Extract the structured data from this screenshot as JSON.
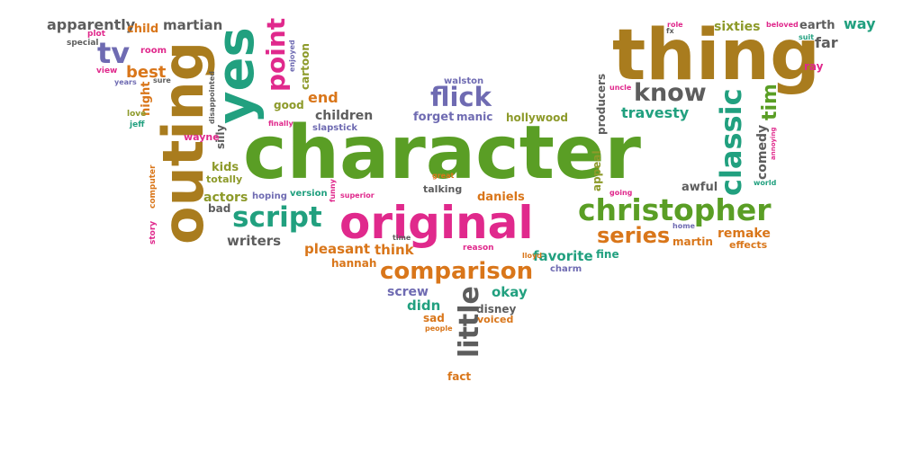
{
  "palette": {
    "green": "#5a9e25",
    "pink": "#e0298c",
    "teal": "#21a07f",
    "brown": "#a97c1e",
    "orange": "#d9761a",
    "gray": "#5d5d5d",
    "purple": "#6f6bb2",
    "olive": "#8d9a2a"
  },
  "words": [
    {
      "text": "character",
      "color": "green"
    },
    {
      "text": "original",
      "color": "pink"
    },
    {
      "text": "thing",
      "color": "brown"
    },
    {
      "text": "outing",
      "color": "brown"
    },
    {
      "text": "yes",
      "color": "teal"
    },
    {
      "text": "christopher",
      "color": "green"
    },
    {
      "text": "comparison",
      "color": "orange"
    },
    {
      "text": "script",
      "color": "teal"
    },
    {
      "text": "classic",
      "color": "teal"
    },
    {
      "text": "little",
      "color": "gray"
    },
    {
      "text": "flick",
      "color": "purple"
    },
    {
      "text": "know",
      "color": "gray"
    },
    {
      "text": "series",
      "color": "orange"
    },
    {
      "text": "point",
      "color": "pink"
    },
    {
      "text": "tv",
      "color": "purple"
    },
    {
      "text": "tim",
      "color": "green"
    },
    {
      "text": "travesty",
      "color": "teal"
    },
    {
      "text": "best",
      "color": "orange"
    },
    {
      "text": "writers",
      "color": "gray"
    },
    {
      "text": "pleasant",
      "color": "orange"
    },
    {
      "text": "favorite",
      "color": "teal"
    },
    {
      "text": "remake",
      "color": "orange"
    },
    {
      "text": "apparently",
      "color": "gray"
    },
    {
      "text": "martian",
      "color": "gray"
    },
    {
      "text": "sixties",
      "color": "olive"
    },
    {
      "text": "way",
      "color": "teal"
    },
    {
      "text": "far",
      "color": "gray"
    },
    {
      "text": "earth",
      "color": "gray"
    },
    {
      "text": "okay",
      "color": "teal"
    },
    {
      "text": "children",
      "color": "gray"
    },
    {
      "text": "comedy",
      "color": "gray"
    },
    {
      "text": "hollywood",
      "color": "olive"
    },
    {
      "text": "forget",
      "color": "purple"
    },
    {
      "text": "manic",
      "color": "purple"
    },
    {
      "text": "end",
      "color": "orange"
    },
    {
      "text": "good",
      "color": "olive"
    },
    {
      "text": "actors",
      "color": "olive"
    },
    {
      "text": "kids",
      "color": "olive"
    },
    {
      "text": "think",
      "color": "orange"
    },
    {
      "text": "screw",
      "color": "purple"
    },
    {
      "text": "didn",
      "color": "teal"
    },
    {
      "text": "awful",
      "color": "gray"
    },
    {
      "text": "daniels",
      "color": "orange"
    },
    {
      "text": "hannah",
      "color": "orange"
    },
    {
      "text": "martin",
      "color": "orange"
    },
    {
      "text": "child",
      "color": "orange"
    },
    {
      "text": "cartoon",
      "color": "olive"
    },
    {
      "text": "night",
      "color": "orange"
    },
    {
      "text": "producers",
      "color": "gray"
    },
    {
      "text": "appeal",
      "color": "olive"
    },
    {
      "text": "bad",
      "color": "gray"
    },
    {
      "text": "silly",
      "color": "gray"
    },
    {
      "text": "wayne",
      "color": "pink"
    },
    {
      "text": "disney",
      "color": "gray"
    },
    {
      "text": "sad",
      "color": "orange"
    },
    {
      "text": "voiced",
      "color": "orange"
    },
    {
      "text": "fact",
      "color": "orange"
    },
    {
      "text": "fine",
      "color": "teal"
    },
    {
      "text": "effects",
      "color": "orange"
    },
    {
      "text": "ray",
      "color": "pink"
    },
    {
      "text": "totally",
      "color": "olive"
    },
    {
      "text": "talking",
      "color": "gray"
    },
    {
      "text": "version",
      "color": "teal"
    },
    {
      "text": "hoping",
      "color": "purple"
    },
    {
      "text": "charm",
      "color": "purple"
    },
    {
      "text": "walston",
      "color": "purple"
    },
    {
      "text": "slapstick",
      "color": "purple"
    },
    {
      "text": "room",
      "color": "pink"
    },
    {
      "text": "special",
      "color": "gray"
    },
    {
      "text": "plot",
      "color": "pink"
    },
    {
      "text": "view",
      "color": "pink"
    },
    {
      "text": "years",
      "color": "purple"
    },
    {
      "text": "sure",
      "color": "gray"
    },
    {
      "text": "love",
      "color": "olive"
    },
    {
      "text": "jeff",
      "color": "teal"
    },
    {
      "text": "finally",
      "color": "pink"
    },
    {
      "text": "disappointed",
      "color": "gray"
    },
    {
      "text": "enjoyed",
      "color": "purple"
    },
    {
      "text": "story",
      "color": "pink"
    },
    {
      "text": "computer",
      "color": "orange"
    },
    {
      "text": "funny",
      "color": "pink"
    },
    {
      "text": "superior",
      "color": "pink"
    },
    {
      "text": "great",
      "color": "orange"
    },
    {
      "text": "time",
      "color": "gray"
    },
    {
      "text": "reason",
      "color": "pink"
    },
    {
      "text": "lloyd",
      "color": "orange"
    },
    {
      "text": "people",
      "color": "orange"
    },
    {
      "text": "going",
      "color": "pink"
    },
    {
      "text": "world",
      "color": "teal"
    },
    {
      "text": "annoying",
      "color": "pink"
    },
    {
      "text": "home",
      "color": "purple"
    },
    {
      "text": "role",
      "color": "pink"
    },
    {
      "text": "fx",
      "color": "gray"
    },
    {
      "text": "beloved",
      "color": "pink"
    },
    {
      "text": "suit",
      "color": "teal"
    },
    {
      "text": "uncle",
      "color": "pink"
    }
  ]
}
